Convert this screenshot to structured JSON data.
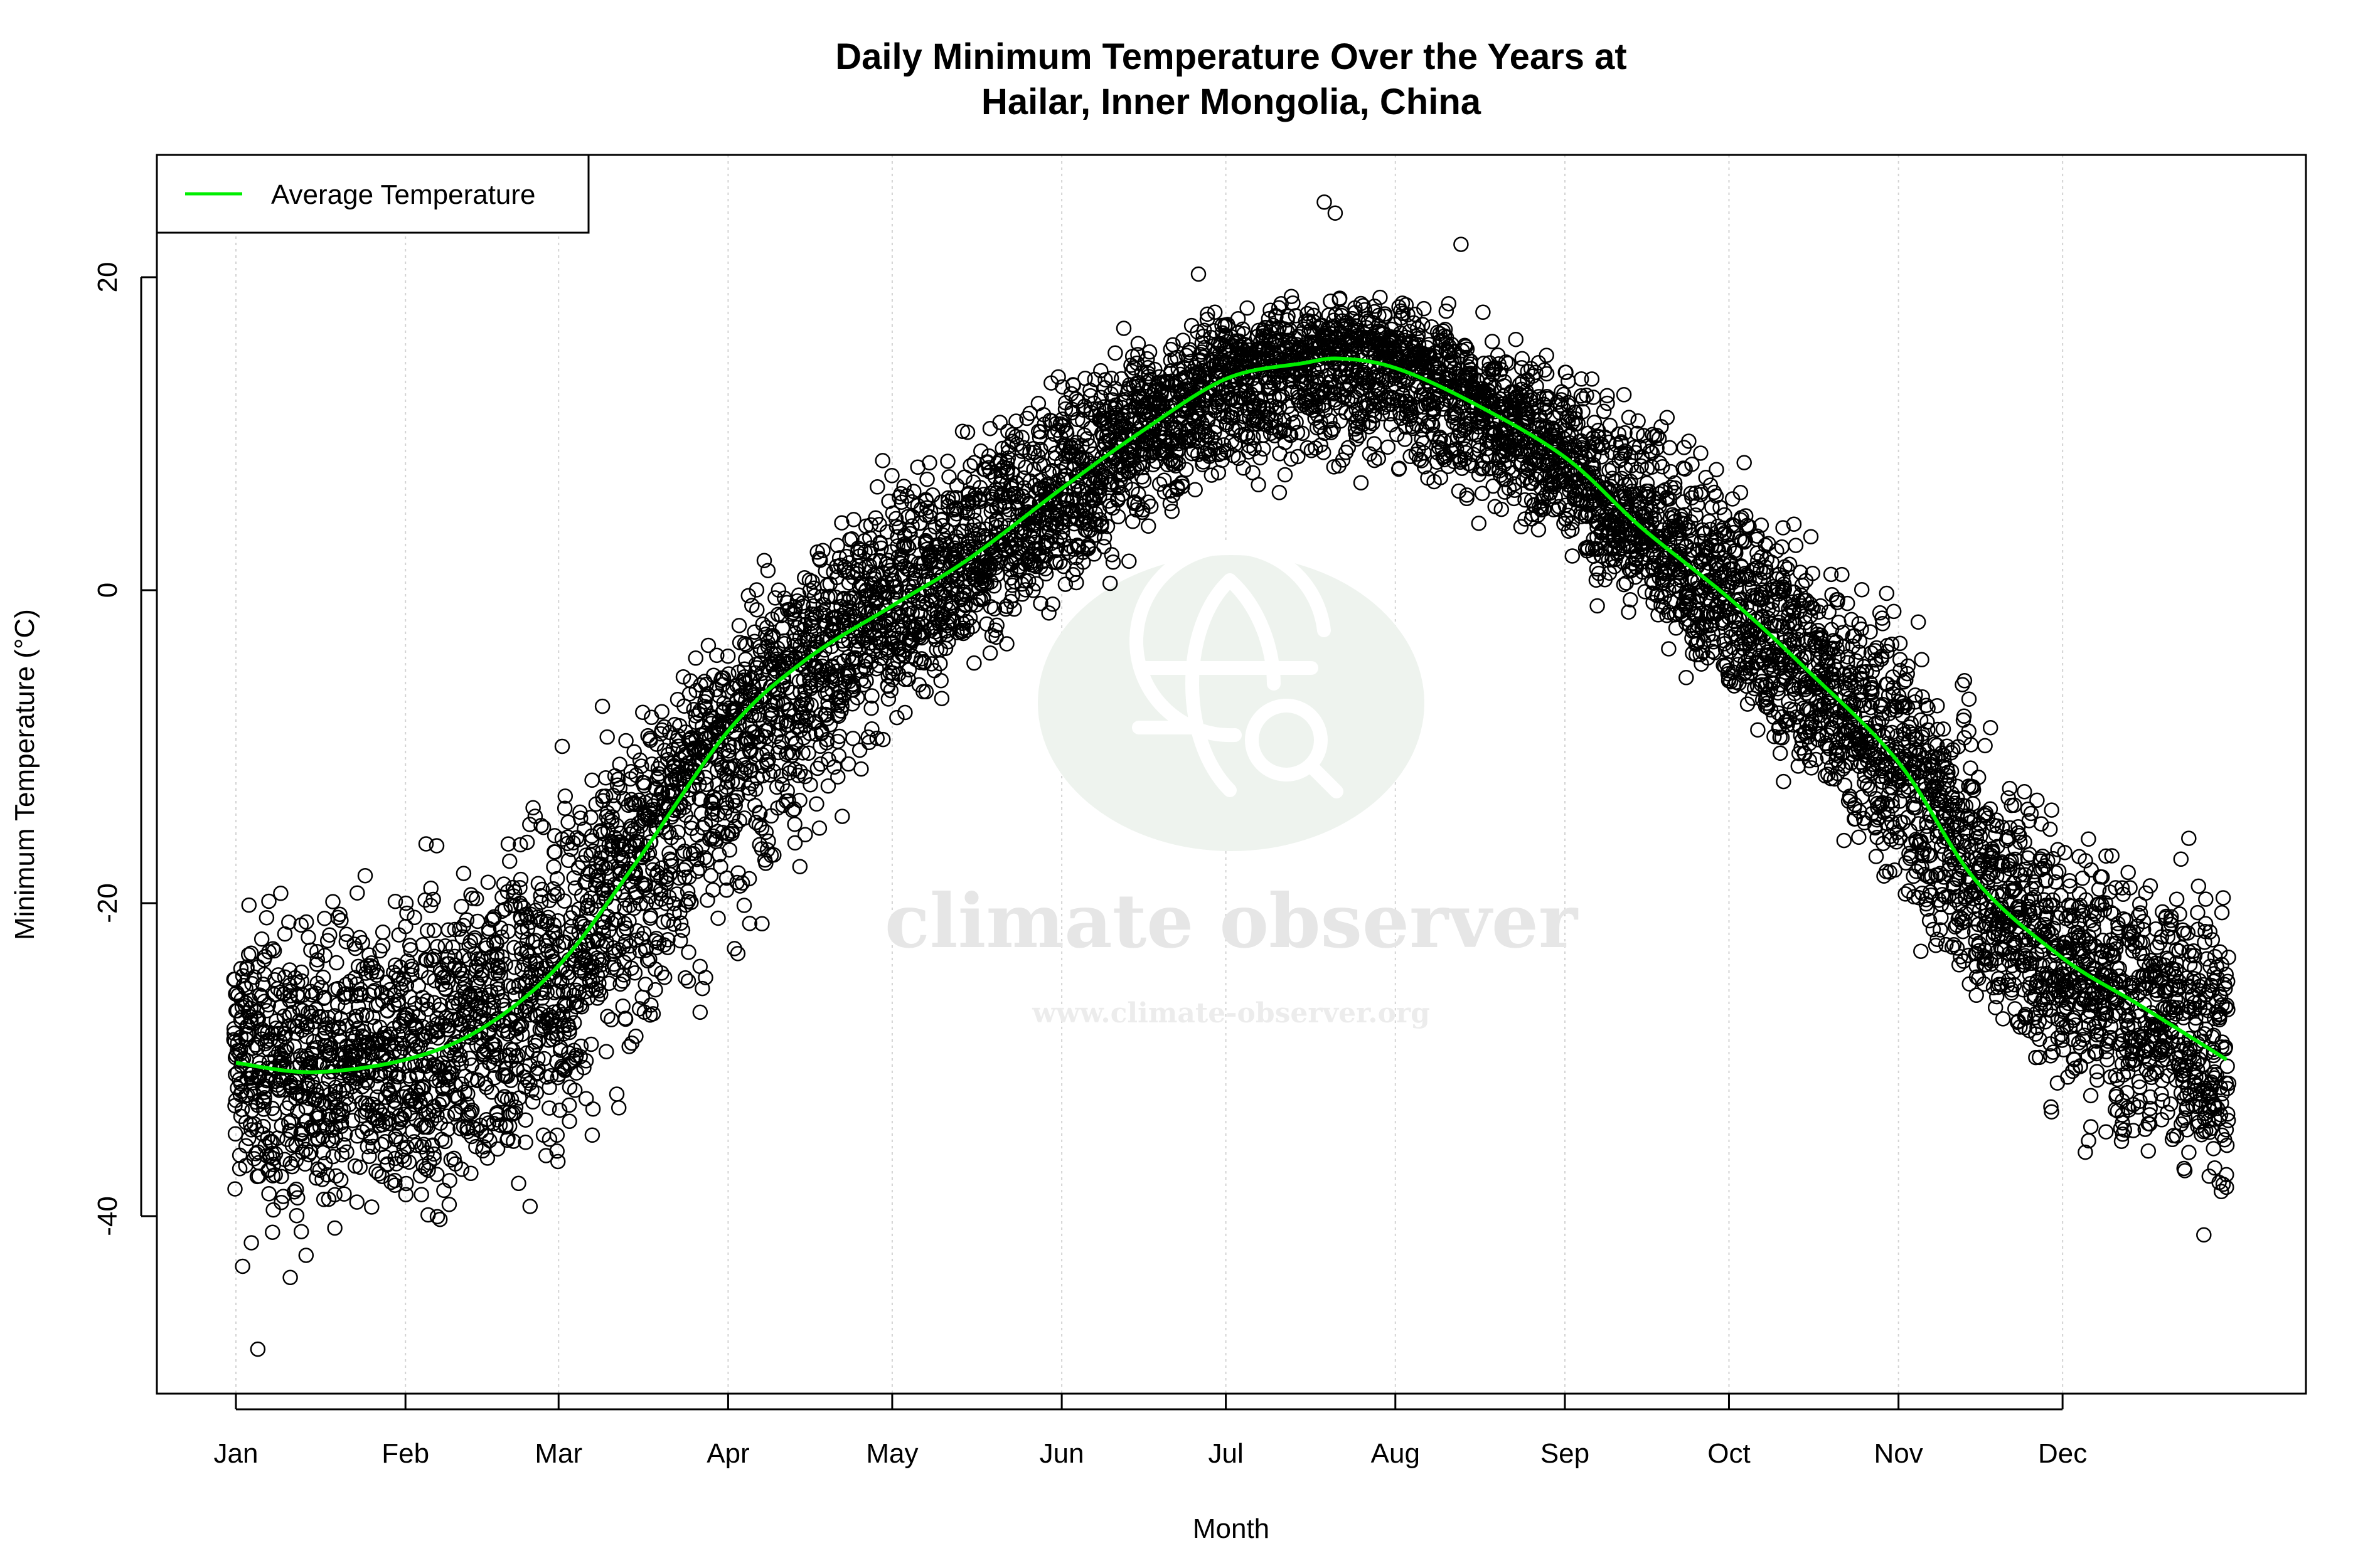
{
  "chart_data": {
    "type": "scatter",
    "title_line1": "Daily Minimum Temperature Over the Years at",
    "title_line2": "Hailar, Inner Mongolia, China",
    "xlabel": "Month",
    "ylabel": "Minimum Temperature (°C)",
    "x_unit": "day of year",
    "xlim": [
      1,
      365
    ],
    "ylim": [
      -51,
      28
    ],
    "x_ticks": [
      {
        "label": "Jan",
        "day": 1
      },
      {
        "label": "Feb",
        "day": 32
      },
      {
        "label": "Mar",
        "day": 60
      },
      {
        "label": "Apr",
        "day": 91
      },
      {
        "label": "May",
        "day": 121
      },
      {
        "label": "Jun",
        "day": 152
      },
      {
        "label": "Jul",
        "day": 182
      },
      {
        "label": "Aug",
        "day": 213
      },
      {
        "label": "Sep",
        "day": 244
      },
      {
        "label": "Oct",
        "day": 274
      },
      {
        "label": "Nov",
        "day": 305
      },
      {
        "label": "Dec",
        "day": 335
      }
    ],
    "y_ticks": [
      -40,
      -20,
      0,
      20
    ],
    "grid": "vertical dotted at month ticks",
    "legend": {
      "placement": "top-left",
      "entries": [
        {
          "label": "Average Temperature",
          "color": "#00ee00"
        }
      ]
    },
    "point_style": {
      "marker": "open circle",
      "color": "#000000"
    },
    "average_curve": {
      "name": "Average Temperature",
      "color": "#00ee00",
      "points": [
        [
          1,
          -30.2
        ],
        [
          15,
          -30.8
        ],
        [
          32,
          -30.0
        ],
        [
          46,
          -28.0
        ],
        [
          60,
          -24.0
        ],
        [
          74,
          -17.5
        ],
        [
          91,
          -9.0
        ],
        [
          105,
          -4.5
        ],
        [
          121,
          -1.0
        ],
        [
          135,
          2.0
        ],
        [
          152,
          6.5
        ],
        [
          166,
          10.0
        ],
        [
          182,
          13.5
        ],
        [
          196,
          14.5
        ],
        [
          203,
          14.8
        ],
        [
          213,
          14.2
        ],
        [
          227,
          12.0
        ],
        [
          244,
          8.5
        ],
        [
          258,
          4.0
        ],
        [
          274,
          -0.5
        ],
        [
          288,
          -5.0
        ],
        [
          305,
          -11.0
        ],
        [
          319,
          -18.5
        ],
        [
          335,
          -23.5
        ],
        [
          349,
          -26.5
        ],
        [
          365,
          -30.0
        ]
      ]
    },
    "observed_envelope": {
      "days": [
        1,
        32,
        60,
        91,
        121,
        152,
        182,
        213,
        244,
        274,
        305,
        335,
        365
      ],
      "low": [
        -45,
        -43,
        -40,
        -28,
        -11,
        -2,
        5,
        6,
        1,
        -9,
        -22,
        -36,
        -42
      ],
      "high": [
        -17,
        -17,
        -10,
        0,
        10,
        16,
        20,
        20,
        17,
        10,
        0,
        -12,
        -17
      ]
    },
    "extreme_points": [
      [
        5,
        -48.5
      ],
      [
        200,
        24.8
      ],
      [
        202,
        24.1
      ],
      [
        225,
        22.1
      ],
      [
        177,
        20.2
      ]
    ]
  },
  "watermark": {
    "name": "climate observer",
    "url": "www.climate-observer.org",
    "icon": "globe-search-icon"
  }
}
